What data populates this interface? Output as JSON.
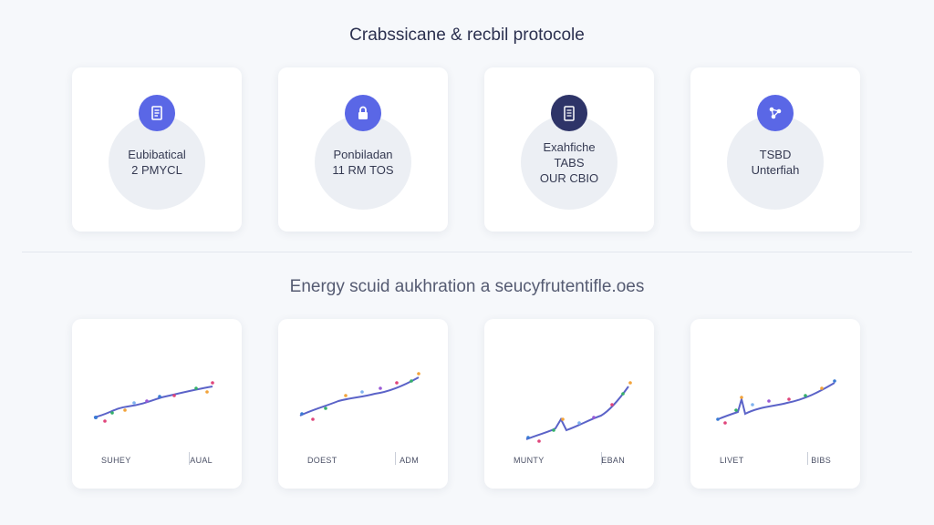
{
  "header": {
    "title": "Crabssicane & recbil protocole",
    "section_title": "Energy scuid aukhration a seucyfrutentifle.oes"
  },
  "top_cards": [
    {
      "icon": "document-icon",
      "color": "#5a67e6",
      "lines": [
        "Eubibatical",
        "2 PMYCL"
      ]
    },
    {
      "icon": "lock-icon",
      "color": "#5a67e6",
      "lines": [
        "Ponbiladan",
        "11 RM TOS"
      ]
    },
    {
      "icon": "clipboard-icon",
      "color": "#2e3468",
      "lines": [
        "Exahfiche",
        "TABS",
        "OUR CBIO"
      ]
    },
    {
      "icon": "molecule-icon",
      "color": "#5a67e6",
      "lines": [
        "TSBD",
        "Unterfiah"
      ]
    }
  ],
  "bottom_cards": [
    {
      "left_label": "SUHEY",
      "right_label": "AUAL"
    },
    {
      "left_label": "DOEST",
      "right_label": "ADM"
    },
    {
      "left_label": "MUNTY",
      "right_label": "EBAN"
    },
    {
      "left_label": "LIVET",
      "right_label": "BIBS"
    }
  ],
  "colors": {
    "line": "#5b63c8",
    "dots": [
      "#e0457b",
      "#35b06a",
      "#3a7bd5",
      "#f2a33a",
      "#7fb3f0",
      "#9a5ad6"
    ]
  }
}
